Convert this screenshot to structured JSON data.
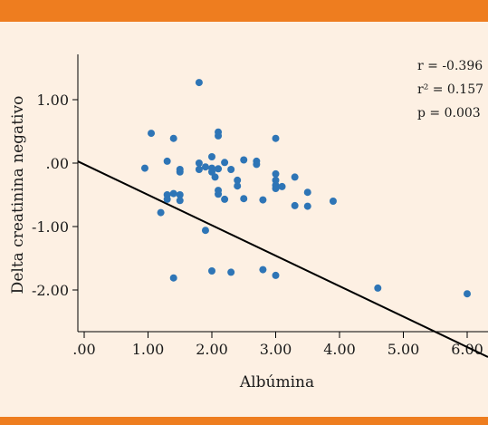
{
  "colors": {
    "band": "#ee7d1f",
    "background": "#fdf0e3",
    "point": "#2e75b6",
    "line": "#000000"
  },
  "chart_data": {
    "type": "scatter",
    "title": "",
    "xlabel": "Albúmina",
    "ylabel": "Delta creatinina negativo",
    "xlim": [
      -0.1,
      6.35
    ],
    "ylim": [
      -2.75,
      1.7
    ],
    "x_ticks": [
      ".00",
      "1.00",
      "2.00",
      "3.00",
      "4.00",
      "5.00",
      "6.00"
    ],
    "y_ticks": [
      "1.00",
      ".00",
      "-1.00",
      "-2.00"
    ],
    "grid": false,
    "legend": "none",
    "annotations": [
      "r = -0.396",
      "r² = 0.157",
      "p = 0.003"
    ],
    "fit_line": {
      "intercept": -0.02,
      "slope": -0.48
    },
    "points": [
      {
        "x": 1.8,
        "y": 1.27
      },
      {
        "x": 1.05,
        "y": 0.47
      },
      {
        "x": 2.1,
        "y": 0.49
      },
      {
        "x": 2.1,
        "y": 0.43
      },
      {
        "x": 1.4,
        "y": 0.39
      },
      {
        "x": 3.0,
        "y": 0.39
      },
      {
        "x": 0.95,
        "y": -0.08
      },
      {
        "x": 1.3,
        "y": 0.03
      },
      {
        "x": 1.5,
        "y": -0.1
      },
      {
        "x": 1.5,
        "y": -0.14
      },
      {
        "x": 1.8,
        "y": 0.0
      },
      {
        "x": 1.8,
        "y": -0.1
      },
      {
        "x": 1.9,
        "y": -0.06
      },
      {
        "x": 2.0,
        "y": 0.1
      },
      {
        "x": 2.0,
        "y": -0.08
      },
      {
        "x": 2.0,
        "y": -0.14
      },
      {
        "x": 2.05,
        "y": -0.22
      },
      {
        "x": 2.1,
        "y": -0.09
      },
      {
        "x": 2.2,
        "y": 0.01
      },
      {
        "x": 2.3,
        "y": -0.1
      },
      {
        "x": 2.5,
        "y": 0.05
      },
      {
        "x": 2.7,
        "y": 0.03
      },
      {
        "x": 2.7,
        "y": -0.02
      },
      {
        "x": 2.4,
        "y": -0.27
      },
      {
        "x": 2.4,
        "y": -0.36
      },
      {
        "x": 3.0,
        "y": -0.17
      },
      {
        "x": 3.0,
        "y": -0.27
      },
      {
        "x": 3.0,
        "y": -0.35
      },
      {
        "x": 3.0,
        "y": -0.4
      },
      {
        "x": 3.1,
        "y": -0.37
      },
      {
        "x": 3.3,
        "y": -0.22
      },
      {
        "x": 1.3,
        "y": -0.5
      },
      {
        "x": 1.3,
        "y": -0.57
      },
      {
        "x": 1.4,
        "y": -0.48
      },
      {
        "x": 1.5,
        "y": -0.5
      },
      {
        "x": 1.5,
        "y": -0.59
      },
      {
        "x": 2.1,
        "y": -0.43
      },
      {
        "x": 2.1,
        "y": -0.49
      },
      {
        "x": 2.2,
        "y": -0.57
      },
      {
        "x": 2.5,
        "y": -0.56
      },
      {
        "x": 2.8,
        "y": -0.58
      },
      {
        "x": 3.5,
        "y": -0.46
      },
      {
        "x": 3.3,
        "y": -0.67
      },
      {
        "x": 3.5,
        "y": -0.68
      },
      {
        "x": 3.9,
        "y": -0.6
      },
      {
        "x": 1.2,
        "y": -0.78
      },
      {
        "x": 1.9,
        "y": -1.06
      },
      {
        "x": 1.4,
        "y": -1.81
      },
      {
        "x": 2.0,
        "y": -1.7
      },
      {
        "x": 2.3,
        "y": -1.72
      },
      {
        "x": 2.8,
        "y": -1.68
      },
      {
        "x": 3.0,
        "y": -1.77
      },
      {
        "x": 4.6,
        "y": -1.97
      },
      {
        "x": 6.0,
        "y": -2.06
      }
    ]
  }
}
